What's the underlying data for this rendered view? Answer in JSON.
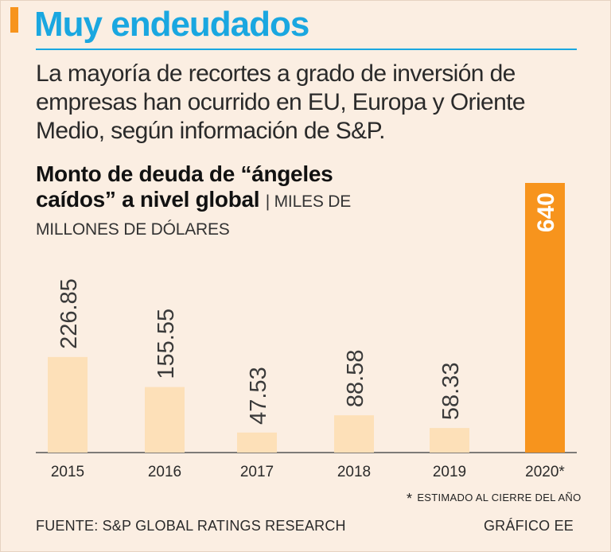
{
  "header": {
    "title": "Muy endeudados",
    "subtitle": "La mayoría de recortes a grado de inversión de empresas han ocurrido en EU, Europa y Oriente Medio, según información de S&P."
  },
  "colors": {
    "title_blue": "#1aa7e0",
    "accent_orange": "#f7941d",
    "bar_light": "#fde0b8",
    "bar_highlight": "#f7941d",
    "background": "#fbeee2"
  },
  "chart_data": {
    "type": "bar",
    "title": "Monto de deuda de “ángeles caídos” a nivel global",
    "unit_label": "| MILES DE MILLONES DE DÓLARES",
    "categories": [
      "2015",
      "2016",
      "2017",
      "2018",
      "2019",
      "2020*"
    ],
    "values": [
      226.85,
      155.55,
      47.53,
      88.58,
      58.33,
      640
    ],
    "value_labels": [
      "226.85",
      "155.55",
      "47.53",
      "88.58",
      "58.33",
      "640"
    ],
    "highlight_index": 5,
    "ylim": [
      0,
      640
    ],
    "grid": false,
    "legend": "none"
  },
  "footer": {
    "footnote_mark": "*",
    "footnote": "ESTIMADO AL CIERRE DEL AÑO",
    "source": "FUENTE: S&P GLOBAL RATINGS RESEARCH",
    "credit": "GRÁFICO EE"
  }
}
